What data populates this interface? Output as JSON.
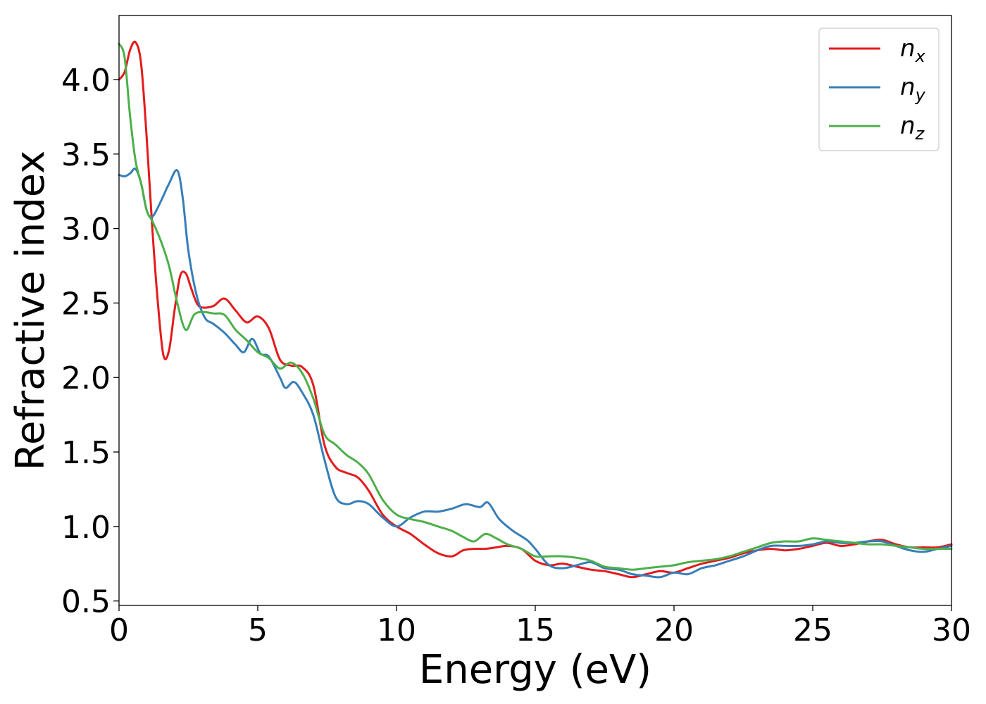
{
  "chart_data": {
    "type": "line",
    "xlabel": "Energy (eV)",
    "ylabel": "Refractive index",
    "xlim": [
      0,
      30
    ],
    "ylim": [
      0.47,
      4.43
    ],
    "xticks": [
      "0",
      "5",
      "10",
      "15",
      "20",
      "25",
      "30"
    ],
    "yticks": [
      "0.5",
      "1.0",
      "1.5",
      "2.0",
      "2.5",
      "3.0",
      "3.5",
      "4.0"
    ],
    "grid": false,
    "legend_position": "top-right",
    "series": [
      {
        "name": "n_x",
        "symbol": "n",
        "subscript": "x",
        "color": "#e41a1c",
        "x": [
          0,
          0.2,
          0.4,
          0.6,
          0.8,
          1.0,
          1.2,
          1.4,
          1.6,
          1.8,
          2.0,
          2.2,
          2.4,
          2.6,
          2.8,
          3.0,
          3.4,
          3.8,
          4.2,
          4.6,
          5.0,
          5.4,
          5.8,
          6.2,
          6.6,
          7.0,
          7.4,
          7.8,
          8.2,
          8.6,
          9.0,
          9.5,
          10.0,
          10.5,
          11.0,
          11.5,
          12.0,
          12.4,
          12.8,
          13.2,
          13.6,
          14.0,
          14.5,
          15.0,
          15.5,
          16.0,
          16.5,
          17.0,
          17.5,
          18.0,
          18.5,
          19.0,
          19.5,
          20.0,
          20.5,
          21.0,
          21.5,
          22.0,
          22.5,
          23.0,
          23.5,
          24.0,
          24.5,
          25.0,
          25.5,
          26.0,
          26.5,
          27.0,
          27.5,
          28.0,
          28.5,
          29.0,
          29.5,
          30.0
        ],
        "values": [
          4.0,
          4.05,
          4.2,
          4.25,
          4.1,
          3.6,
          3.0,
          2.5,
          2.15,
          2.18,
          2.45,
          2.68,
          2.7,
          2.6,
          2.5,
          2.47,
          2.48,
          2.53,
          2.45,
          2.37,
          2.41,
          2.33,
          2.12,
          2.08,
          2.07,
          1.95,
          1.55,
          1.4,
          1.36,
          1.33,
          1.24,
          1.08,
          1.0,
          0.95,
          0.88,
          0.82,
          0.8,
          0.84,
          0.85,
          0.85,
          0.86,
          0.87,
          0.85,
          0.77,
          0.74,
          0.75,
          0.73,
          0.71,
          0.7,
          0.68,
          0.66,
          0.68,
          0.7,
          0.69,
          0.72,
          0.75,
          0.77,
          0.79,
          0.82,
          0.84,
          0.85,
          0.84,
          0.85,
          0.87,
          0.89,
          0.87,
          0.88,
          0.9,
          0.91,
          0.88,
          0.86,
          0.86,
          0.86,
          0.88
        ]
      },
      {
        "name": "n_y",
        "symbol": "n",
        "subscript": "y",
        "color": "#377eb8",
        "x": [
          0,
          0.2,
          0.4,
          0.6,
          0.8,
          1.0,
          1.2,
          1.5,
          1.8,
          2.1,
          2.3,
          2.5,
          2.8,
          3.1,
          3.4,
          3.8,
          4.2,
          4.5,
          4.8,
          5.1,
          5.4,
          5.8,
          6.0,
          6.3,
          6.6,
          7.0,
          7.4,
          7.8,
          8.2,
          8.6,
          9.0,
          9.5,
          10.0,
          10.5,
          11.0,
          11.5,
          12.0,
          12.5,
          13.0,
          13.3,
          13.7,
          14.2,
          14.7,
          15.0,
          15.5,
          16.0,
          16.5,
          17.0,
          17.5,
          18.0,
          18.5,
          19.0,
          19.5,
          20.0,
          20.5,
          21.0,
          21.5,
          22.0,
          22.5,
          23.0,
          23.5,
          24.0,
          24.5,
          25.0,
          25.5,
          26.0,
          26.5,
          27.0,
          27.5,
          28.0,
          28.5,
          29.0,
          29.5,
          30.0
        ],
        "values": [
          3.36,
          3.35,
          3.37,
          3.4,
          3.3,
          3.12,
          3.08,
          3.18,
          3.3,
          3.39,
          3.2,
          2.85,
          2.55,
          2.4,
          2.36,
          2.3,
          2.22,
          2.17,
          2.26,
          2.16,
          2.14,
          2.0,
          1.93,
          1.97,
          1.9,
          1.75,
          1.45,
          1.2,
          1.15,
          1.17,
          1.15,
          1.06,
          1.0,
          1.06,
          1.1,
          1.1,
          1.12,
          1.15,
          1.13,
          1.16,
          1.05,
          0.97,
          0.91,
          0.85,
          0.74,
          0.72,
          0.74,
          0.76,
          0.72,
          0.71,
          0.68,
          0.67,
          0.66,
          0.69,
          0.68,
          0.72,
          0.74,
          0.77,
          0.8,
          0.84,
          0.87,
          0.87,
          0.87,
          0.88,
          0.9,
          0.89,
          0.89,
          0.9,
          0.9,
          0.87,
          0.84,
          0.83,
          0.85,
          0.87
        ]
      },
      {
        "name": "n_z",
        "symbol": "n",
        "subscript": "z",
        "color": "#4daf4a",
        "x": [
          0,
          0.2,
          0.4,
          0.6,
          0.8,
          1.0,
          1.2,
          1.5,
          1.8,
          2.1,
          2.4,
          2.7,
          3.0,
          3.4,
          3.8,
          4.2,
          4.6,
          5.0,
          5.4,
          5.8,
          6.2,
          6.6,
          7.0,
          7.4,
          7.8,
          8.2,
          8.6,
          9.0,
          9.5,
          10.0,
          10.5,
          11.0,
          11.5,
          12.0,
          12.4,
          12.8,
          13.2,
          13.6,
          14.0,
          14.5,
          15.0,
          15.5,
          16.0,
          16.5,
          17.0,
          17.5,
          18.0,
          18.5,
          19.0,
          19.5,
          20.0,
          20.5,
          21.0,
          21.5,
          22.0,
          22.5,
          23.0,
          23.5,
          24.0,
          24.5,
          25.0,
          25.5,
          26.0,
          26.5,
          27.0,
          27.5,
          28.0,
          28.5,
          29.0,
          29.5,
          30.0
        ],
        "values": [
          4.24,
          4.15,
          3.75,
          3.45,
          3.3,
          3.12,
          3.05,
          2.92,
          2.75,
          2.5,
          2.32,
          2.42,
          2.44,
          2.43,
          2.42,
          2.32,
          2.25,
          2.17,
          2.13,
          2.06,
          2.1,
          2.03,
          1.86,
          1.62,
          1.55,
          1.48,
          1.43,
          1.35,
          1.18,
          1.08,
          1.05,
          1.03,
          1.0,
          0.97,
          0.93,
          0.9,
          0.95,
          0.92,
          0.88,
          0.85,
          0.8,
          0.8,
          0.8,
          0.79,
          0.77,
          0.73,
          0.72,
          0.71,
          0.72,
          0.73,
          0.74,
          0.76,
          0.77,
          0.78,
          0.8,
          0.83,
          0.86,
          0.89,
          0.9,
          0.9,
          0.92,
          0.91,
          0.9,
          0.89,
          0.88,
          0.88,
          0.87,
          0.86,
          0.85,
          0.85,
          0.85
        ]
      }
    ]
  }
}
